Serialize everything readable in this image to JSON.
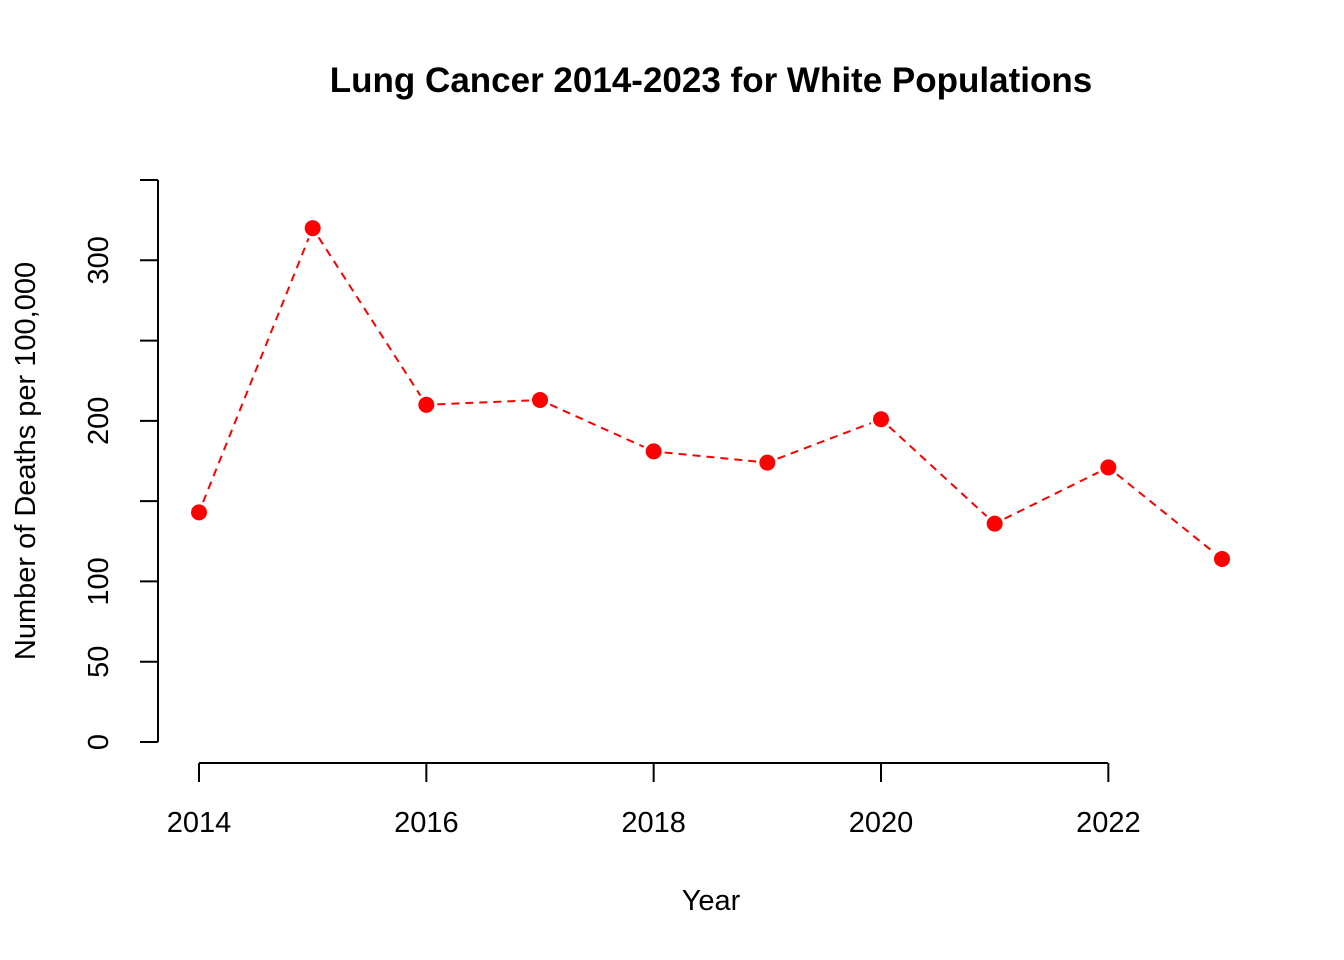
{
  "chart_data": {
    "type": "line",
    "title": "Lung Cancer 2014-2023 for White Populations",
    "xlabel": "Year",
    "ylabel": "Number of Deaths per 100,000",
    "x": [
      2014,
      2015,
      2016,
      2017,
      2018,
      2019,
      2020,
      2021,
      2022,
      2023
    ],
    "series": [
      {
        "values": [
          143,
          320,
          210,
          213,
          181,
          174,
          201,
          136,
          171,
          114
        ],
        "color": "#ff0000",
        "line_style": "dashed",
        "marker": "filled-circle"
      }
    ],
    "x_ticks": [
      2014,
      2016,
      2018,
      2020,
      2022
    ],
    "x_tick_labels": [
      "2014",
      "2016",
      "2018",
      "2020",
      "2022"
    ],
    "y_ticks": [
      0,
      50,
      100,
      150,
      200,
      250,
      300,
      350
    ],
    "y_tick_labels": [
      "0",
      "50",
      "100",
      "",
      "200",
      "",
      "300",
      ""
    ],
    "xlim": [
      2014,
      2023
    ],
    "ylim": [
      0,
      350
    ],
    "grid": false,
    "legend": "none"
  }
}
